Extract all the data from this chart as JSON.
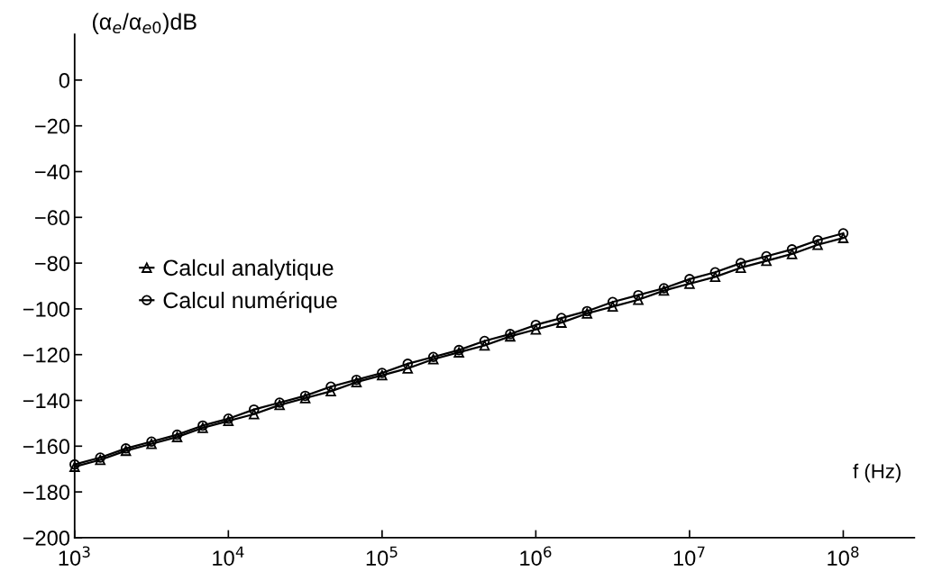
{
  "chart_data": {
    "type": "line",
    "ylabel": "(α$_{e}$/α$_{e0}$)dB",
    "xlabel": "f (Hz)",
    "log": "x",
    "xlim": [
      1000,
      290000000
    ],
    "ylim": [
      -200,
      20
    ],
    "xticks": [
      {
        "value": 1000,
        "label": "10$^{3}$"
      },
      {
        "value": 10000,
        "label": "10$^{4}$"
      },
      {
        "value": 100000,
        "label": "10$^{5}$"
      },
      {
        "value": 1000000,
        "label": "10$^{6}$"
      },
      {
        "value": 10000000,
        "label": "10$^{7}$"
      },
      {
        "value": 100000000,
        "label": "10$^{8}$"
      }
    ],
    "yticks": [
      0,
      -20,
      -40,
      -60,
      -80,
      -100,
      -120,
      -140,
      -160,
      -180,
      -200
    ],
    "x": [
      1000,
      1468,
      2154,
      3162,
      4642,
      6813,
      10000,
      14678,
      21544,
      31623,
      46416,
      68129,
      100000,
      146780,
      215443,
      316228,
      464159,
      681292,
      1000000,
      1467799,
      2154435,
      3162278,
      4641589,
      6812921,
      10000000,
      14677993,
      21544347,
      31622777,
      46415888,
      68129207,
      100000000
    ],
    "series": [
      {
        "name": "Calcul analytique",
        "color": "#000000",
        "marker": "triangle",
        "values": [
          -169,
          -166,
          -162,
          -159,
          -156,
          -152,
          -149,
          -146,
          -142,
          -139,
          -136,
          -132,
          -129,
          -126,
          -122,
          -119,
          -116,
          -112,
          -109,
          -106,
          -102,
          -99,
          -96,
          -92,
          -89,
          -86,
          -82,
          -79,
          -76,
          -72,
          -69
        ]
      },
      {
        "name": "Calcul numérique",
        "color": "#000000",
        "marker": "circle",
        "values": [
          -168,
          -165,
          -161,
          -158,
          -155,
          -151,
          -148,
          -144,
          -141,
          -138,
          -134,
          -131,
          -128,
          -124,
          -121,
          -118,
          -114,
          -111,
          -107,
          -104,
          -101,
          -97,
          -94,
          -91,
          -87,
          -84,
          -80,
          -77,
          -74,
          -70,
          -67
        ]
      }
    ],
    "legend": "center left",
    "grid": false
  }
}
